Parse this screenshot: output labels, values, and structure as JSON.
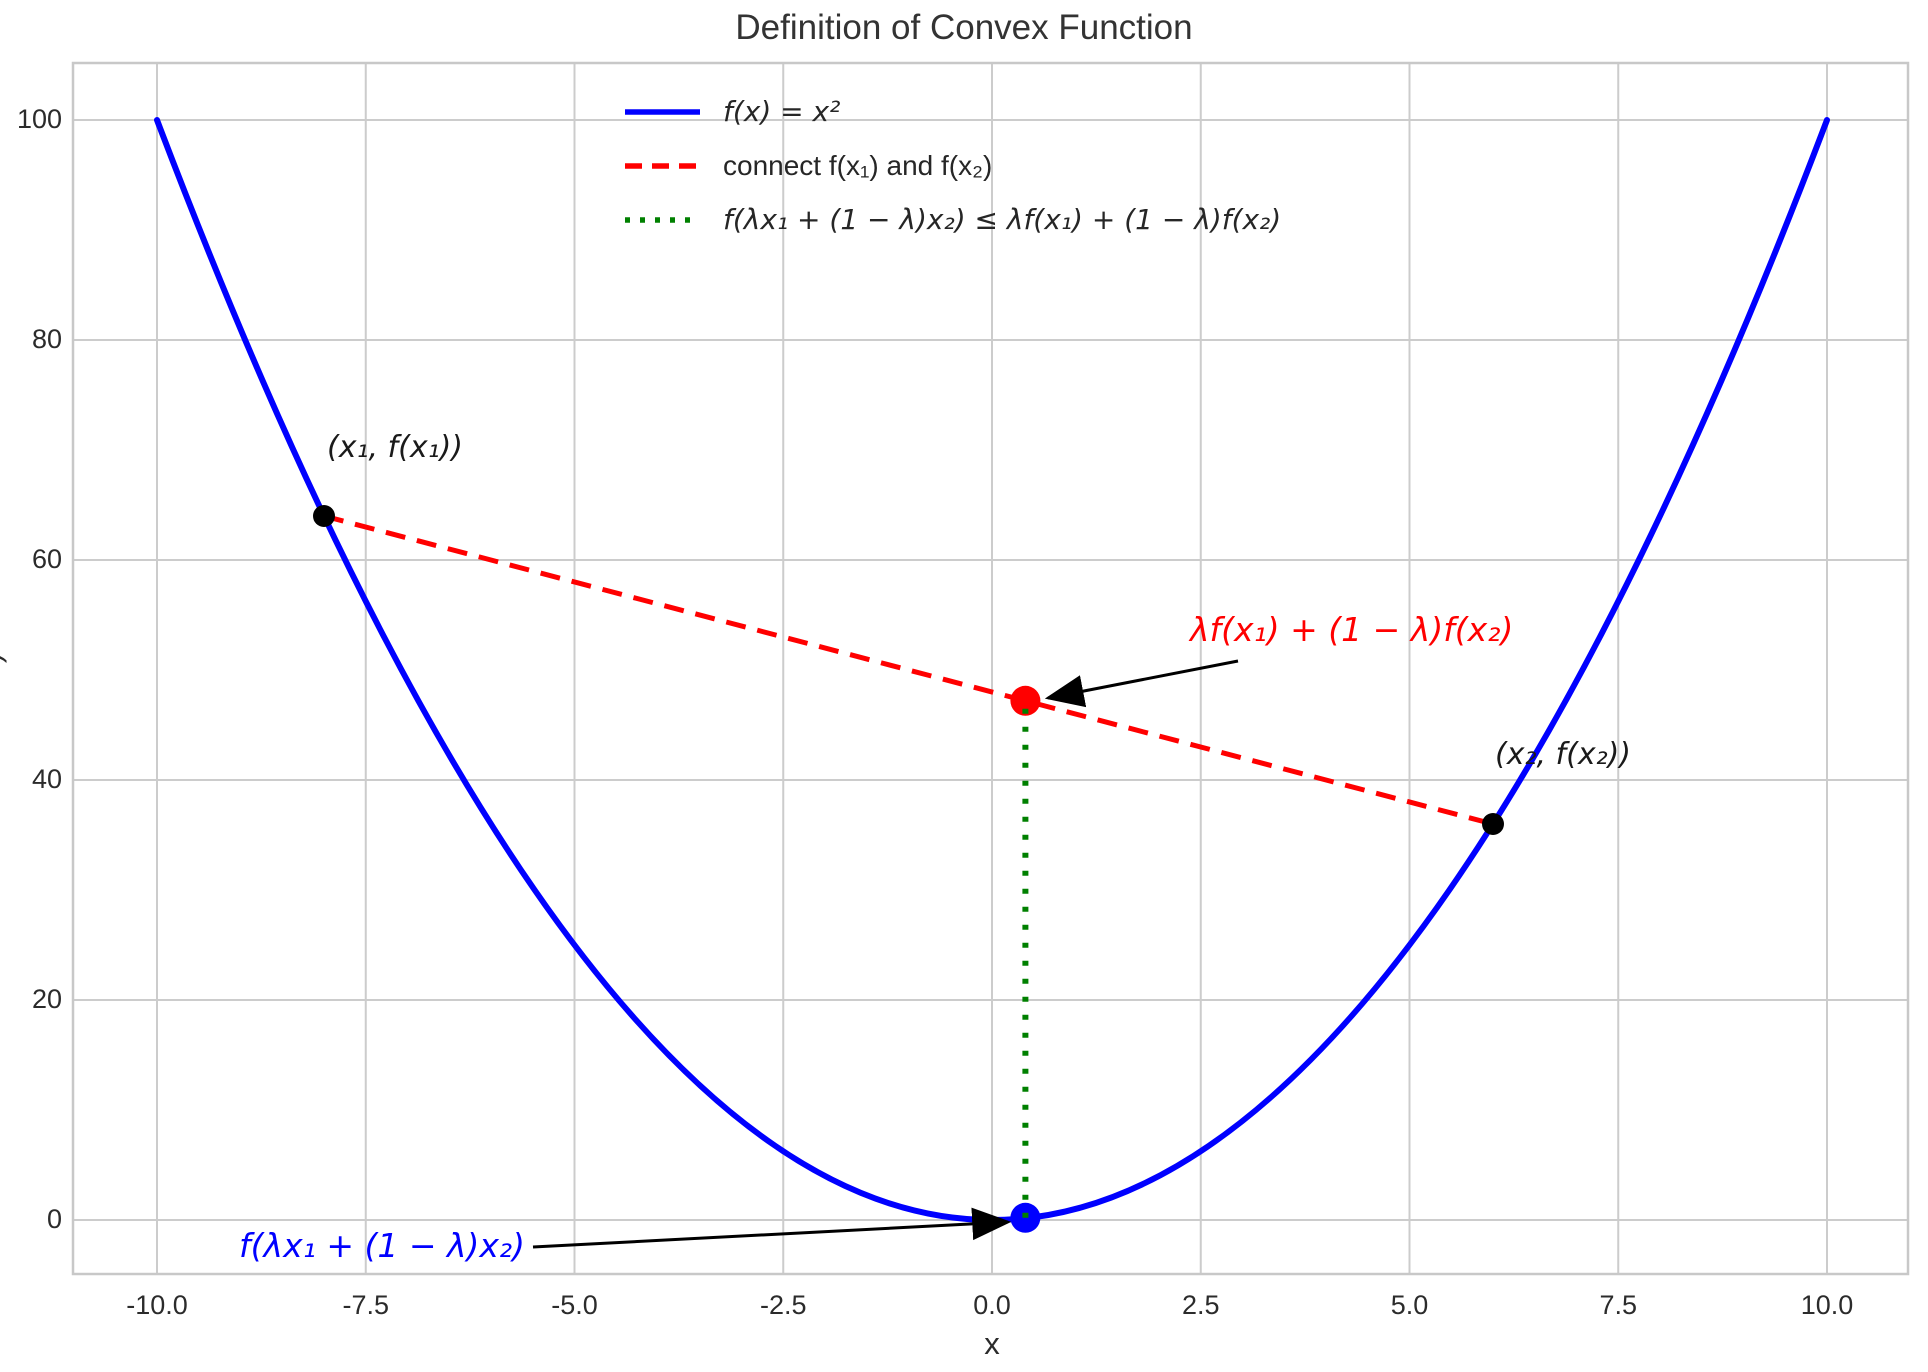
{
  "title": "Definition of Convex Function",
  "chart_data": {
    "type": "line",
    "title": "Definition of Convex Function",
    "xlabel": "x",
    "ylabel_partial": ")",
    "xlim": [
      -11,
      11
    ],
    "ylim": [
      -5,
      105
    ],
    "grid": true,
    "background": "#ffffff",
    "grid_color": "#cccccc",
    "spine_color": "#c8c8c8",
    "x_ticks": {
      "values": [
        -10,
        -7.5,
        -5,
        -2.5,
        0,
        2.5,
        5,
        7.5,
        10
      ],
      "labels": [
        "-10.0",
        "-7.5",
        "-5.0",
        "-2.5",
        "0.0",
        "2.5",
        "5.0",
        "7.5",
        "10.0"
      ]
    },
    "y_ticks": {
      "values": [
        0,
        20,
        40,
        60,
        80,
        100
      ],
      "labels": [
        "0",
        "20",
        "40",
        "60",
        "80",
        "100"
      ]
    },
    "legend": {
      "position": "upper center",
      "items": [
        {
          "label": "f(x) = x²",
          "color": "#0000ff",
          "line_style": "solid",
          "italic": true
        },
        {
          "label": "connect f(x₁) and f(x₂)",
          "color": "#ff0000",
          "line_style": "dashed",
          "italic": false
        },
        {
          "label": "f(λx₁ + (1 − λ)x₂) ≤ λf(x₁) + (1 − λ)f(x₂)",
          "color": "#008000",
          "line_style": "dotted",
          "italic": true
        }
      ]
    },
    "series": [
      {
        "name": "f(x) = x²",
        "color": "#0000ff",
        "style": "solid",
        "width": 6,
        "function": "x^2",
        "x_range": [
          -10,
          10
        ],
        "sample_points": [
          [
            -10,
            100
          ],
          [
            -8,
            64
          ],
          [
            -6,
            36
          ],
          [
            -4,
            16
          ],
          [
            -2,
            4
          ],
          [
            0,
            0
          ],
          [
            2,
            4
          ],
          [
            4,
            16
          ],
          [
            6,
            36
          ],
          [
            8,
            64
          ],
          [
            10,
            100
          ]
        ]
      },
      {
        "name": "connect f(x₁) and f(x₂)",
        "color": "#ff0000",
        "style": "dashed",
        "width": 5,
        "points": [
          [
            -8,
            64
          ],
          [
            6,
            36
          ]
        ]
      },
      {
        "name": "f(λx₁ + (1 − λ)x₂) ≤ λf(x₁) + (1 − λ)f(x₂)",
        "color": "#008000",
        "style": "dotted",
        "width": 6,
        "points": [
          [
            0.4,
            0.2
          ],
          [
            0.4,
            47.2
          ]
        ]
      }
    ],
    "markers": [
      {
        "name": "point-x1",
        "x": -8,
        "y": 64,
        "color": "#000000",
        "radius": 11,
        "label": "(x₁, f(x₁))"
      },
      {
        "name": "point-x2",
        "x": 6,
        "y": 36,
        "color": "#000000",
        "radius": 11,
        "label": "(x₂, f(x₂))"
      },
      {
        "name": "point-chord",
        "x": 0.4,
        "y": 47.2,
        "color": "#ff0000",
        "radius": 15,
        "label": "λf(x₁) + (1 − λ)f(x₂)"
      },
      {
        "name": "point-function",
        "x": 0.4,
        "y": 0.2,
        "color": "#0000ff",
        "radius": 15,
        "label": "f(λx₁ + (1 − λ)x₂)"
      }
    ],
    "annotations": [
      {
        "text": "λf(x₁) + (1 − λ)f(x₂)",
        "color": "#ff0000",
        "points_to": "point-chord"
      },
      {
        "text": "f(λx₁ + (1 − λ)x₂)",
        "color": "#0000ff",
        "points_to": "point-function"
      }
    ]
  }
}
